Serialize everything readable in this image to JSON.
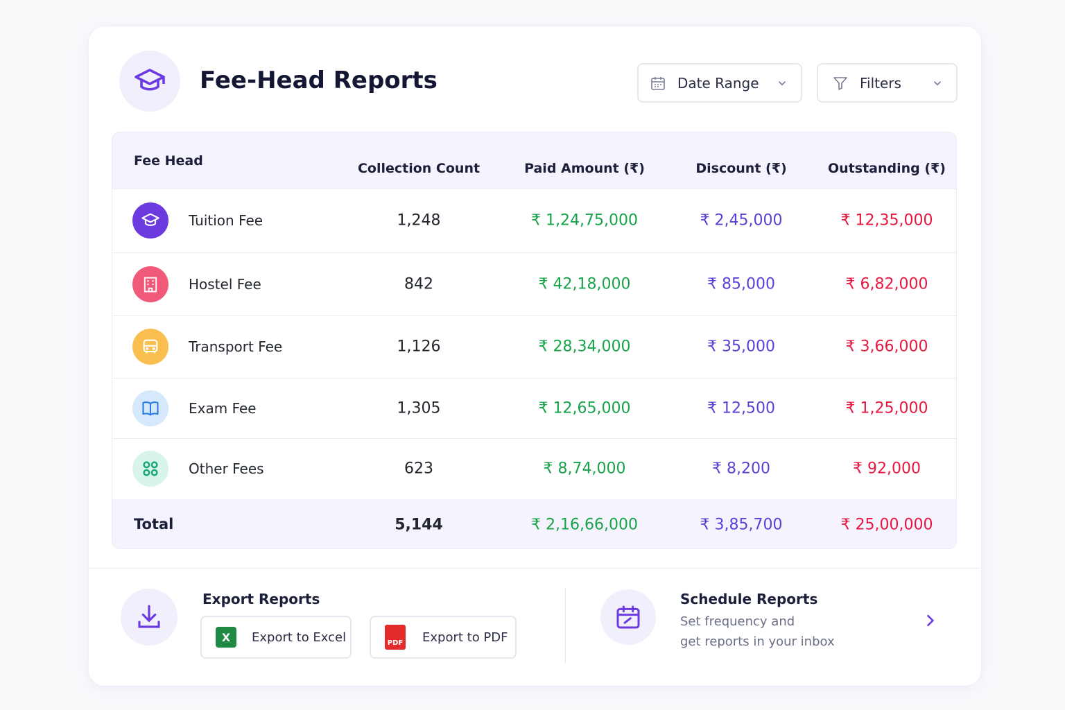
{
  "header": {
    "title": "Fee-Head Reports",
    "date_range": "Date Range",
    "filters": "Filters"
  },
  "table": {
    "columns": [
      "Fee Head",
      "Collection Count",
      "Paid Amount (₹)",
      "Discount (₹)",
      "Outstanding (₹)"
    ],
    "rows": [
      [
        "Tuition Fee",
        "1,248",
        "₹ 1,24,75,000",
        "₹ 2,45,000",
        "₹ 12,35,000"
      ],
      [
        "Hostel Fee",
        "842",
        "₹ 42,18,000",
        "₹ 85,000",
        "₹ 6,82,000"
      ],
      [
        "Transport Fee",
        "1,126",
        "₹ 28,34,000",
        "₹ 35,000",
        "₹ 3,66,000"
      ],
      [
        "Exam Fee",
        "1,305",
        "₹ 12,65,000",
        "₹ 12,500",
        "₹ 1,25,000"
      ],
      [
        "Other Fees",
        "623",
        "₹ 8,74,000",
        "₹ 8,200",
        "₹ 92,000"
      ]
    ],
    "total": [
      "Total",
      "5,144",
      "₹ 2,16,66,000",
      "₹ 3,85,700",
      "₹ 25,00,000"
    ]
  },
  "export": {
    "title": "Export Reports",
    "excel": "Export to Excel",
    "excel_icon": "X",
    "pdf": "Export to PDF",
    "pdf_icon": "PDF"
  },
  "schedule": {
    "title": "Schedule Reports",
    "subtitle_lines": [
      "Set frequency and",
      "get reports in your inbox"
    ]
  }
}
